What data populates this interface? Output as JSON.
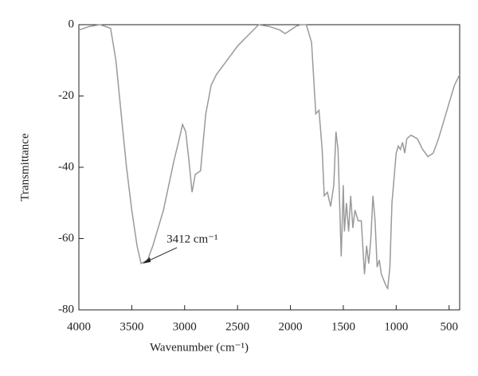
{
  "chart_data": {
    "type": "line",
    "x_label": "Wavenumber (cm⁻¹)",
    "y_label": "Transmittance",
    "xlim": [
      4000,
      400
    ],
    "ylim": [
      -80,
      0
    ],
    "xticks": [
      4000,
      3500,
      3000,
      2500,
      2000,
      1500,
      1000,
      500
    ],
    "yticks": [
      0,
      -20,
      -40,
      -60,
      -80
    ],
    "annotation": {
      "text": "3412 cm⁻¹",
      "x": 3412,
      "y": -67
    },
    "series": [
      {
        "color": "#9a9a9a",
        "x": [
          4000,
          3900,
          3800,
          3700,
          3650,
          3600,
          3550,
          3500,
          3450,
          3412,
          3350,
          3300,
          3200,
          3100,
          3050,
          3020,
          2990,
          2960,
          2930,
          2900,
          2850,
          2800,
          2750,
          2700,
          2600,
          2500,
          2400,
          2300,
          2200,
          2100,
          2050,
          2000,
          1950,
          1900,
          1850,
          1800,
          1760,
          1730,
          1700,
          1680,
          1650,
          1620,
          1590,
          1570,
          1550,
          1520,
          1500,
          1490,
          1470,
          1450,
          1430,
          1410,
          1390,
          1360,
          1330,
          1300,
          1280,
          1260,
          1240,
          1220,
          1200,
          1180,
          1160,
          1140,
          1100,
          1080,
          1060,
          1040,
          1000,
          980,
          960,
          940,
          920,
          900,
          860,
          800,
          750,
          700,
          650,
          600,
          550,
          500,
          450,
          400
        ],
        "values": [
          -1.5,
          -0.5,
          0,
          -1,
          -10,
          -25,
          -40,
          -52,
          -62,
          -67,
          -66,
          -62,
          -52,
          -38,
          -32,
          -28,
          -30,
          -38,
          -47,
          -42,
          -41,
          -25,
          -17,
          -14,
          -10,
          -6,
          -3,
          0,
          -0.5,
          -1.5,
          -2.5,
          -1.5,
          -0.5,
          0,
          0,
          -5,
          -25,
          -24,
          -35,
          -48,
          -47,
          -51,
          -45,
          -30,
          -35,
          -65,
          -45,
          -58,
          -50,
          -58,
          -48,
          -57,
          -52,
          -55,
          -55,
          -70,
          -62,
          -67,
          -60,
          -48,
          -55,
          -68,
          -66,
          -70,
          -73,
          -74,
          -68,
          -50,
          -36,
          -34,
          -35,
          -33,
          -36,
          -32,
          -31,
          -32,
          -35,
          -37,
          -36,
          -32,
          -27,
          -22,
          -17,
          -14
        ]
      }
    ]
  }
}
